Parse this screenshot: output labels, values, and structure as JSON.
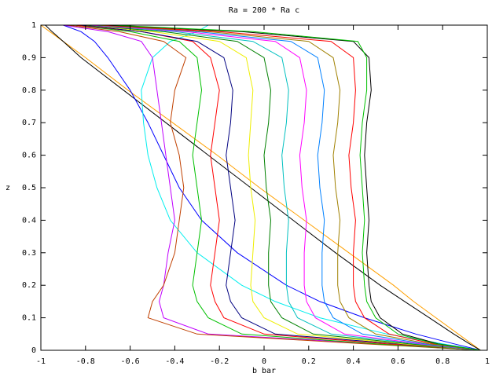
{
  "chart_data": {
    "type": "line",
    "title": "Ra = 200 * Ra c",
    "xlabel": "b bar",
    "ylabel": "z",
    "xlim": [
      -1,
      1
    ],
    "ylim": [
      0,
      1
    ],
    "xticks": [
      -1,
      -0.8,
      -0.6,
      -0.4,
      -0.2,
      0,
      0.2,
      0.4,
      0.6,
      0.8,
      1
    ],
    "yticks": [
      0,
      0.1,
      0.2,
      0.3,
      0.4,
      0.5,
      0.6,
      0.7,
      0.8,
      0.9,
      1
    ],
    "y": [
      0,
      0.02,
      0.05,
      0.1,
      0.15,
      0.2,
      0.3,
      0.4,
      0.5,
      0.6,
      0.7,
      0.8,
      0.9,
      0.95,
      0.98,
      1
    ],
    "series": [
      {
        "color": "#ffa000",
        "x": [
          0.97,
          0.93,
          0.87,
          0.77,
          0.67,
          0.58,
          0.38,
          0.18,
          -0.02,
          -0.21,
          -0.41,
          -0.61,
          -0.8,
          -0.9,
          -0.96,
          -1
        ]
      },
      {
        "color": "#000000",
        "x": [
          0.97,
          0.92,
          0.85,
          0.74,
          0.63,
          0.52,
          0.32,
          0.13,
          -0.06,
          -0.25,
          -0.44,
          -0.63,
          -0.82,
          -0.9,
          -0.95,
          -0.98
        ]
      },
      {
        "color": "#0000ff",
        "x": [
          0.97,
          0.85,
          0.68,
          0.45,
          0.25,
          0.1,
          -0.12,
          -0.28,
          -0.38,
          -0.45,
          -0.52,
          -0.6,
          -0.7,
          -0.76,
          -0.82,
          -0.9
        ]
      },
      {
        "color": "#00eeee",
        "x": [
          0.97,
          0.8,
          0.55,
          0.25,
          0.05,
          -0.1,
          -0.3,
          -0.42,
          -0.48,
          -0.52,
          -0.54,
          -0.55,
          -0.5,
          -0.42,
          -0.3,
          -0.25
        ]
      },
      {
        "color": "#c000ff",
        "x": [
          0.97,
          0.5,
          -0.25,
          -0.45,
          -0.47,
          -0.45,
          -0.43,
          -0.4,
          -0.42,
          -0.44,
          -0.46,
          -0.48,
          -0.5,
          -0.55,
          -0.7,
          -0.9
        ]
      },
      {
        "color": "#c04000",
        "x": [
          0.97,
          0.45,
          -0.3,
          -0.52,
          -0.5,
          -0.45,
          -0.4,
          -0.38,
          -0.36,
          -0.38,
          -0.42,
          -0.4,
          -0.35,
          -0.45,
          -0.65,
          -0.88
        ]
      },
      {
        "color": "#00c000",
        "x": [
          0.97,
          0.5,
          -0.1,
          -0.25,
          -0.3,
          -0.32,
          -0.3,
          -0.28,
          -0.3,
          -0.32,
          -0.3,
          -0.28,
          -0.3,
          -0.38,
          -0.6,
          -0.85
        ]
      },
      {
        "color": "#ff0000",
        "x": [
          0.97,
          0.55,
          0,
          -0.18,
          -0.22,
          -0.24,
          -0.22,
          -0.2,
          -0.22,
          -0.24,
          -0.22,
          -0.2,
          -0.24,
          -0.32,
          -0.55,
          -0.85
        ]
      },
      {
        "color": "#000080",
        "x": [
          0.97,
          0.6,
          0.05,
          -0.1,
          -0.15,
          -0.17,
          -0.15,
          -0.13,
          -0.15,
          -0.17,
          -0.15,
          -0.14,
          -0.18,
          -0.3,
          -0.55,
          -0.82
        ]
      },
      {
        "color": "#eeee00",
        "x": [
          0.97,
          0.62,
          0.15,
          0,
          -0.05,
          -0.06,
          -0.05,
          -0.04,
          -0.06,
          -0.07,
          -0.06,
          -0.05,
          -0.08,
          -0.2,
          -0.5,
          -0.8
        ]
      },
      {
        "color": "#008000",
        "x": [
          0.97,
          0.65,
          0.22,
          0.08,
          0.03,
          0.02,
          0.02,
          0.03,
          0.01,
          0,
          0.02,
          0.03,
          0,
          -0.12,
          -0.45,
          -0.8
        ]
      },
      {
        "color": "#00c0c0",
        "x": [
          0.97,
          0.68,
          0.3,
          0.15,
          0.11,
          0.1,
          0.1,
          0.11,
          0.09,
          0.08,
          0.1,
          0.11,
          0.08,
          -0.05,
          -0.4,
          -0.78
        ]
      },
      {
        "color": "#ff00ff",
        "x": [
          0.97,
          0.7,
          0.36,
          0.23,
          0.19,
          0.18,
          0.18,
          0.19,
          0.17,
          0.16,
          0.18,
          0.19,
          0.16,
          0.05,
          -0.35,
          -0.78
        ]
      },
      {
        "color": "#0080ff",
        "x": [
          0.97,
          0.72,
          0.44,
          0.31,
          0.27,
          0.26,
          0.26,
          0.27,
          0.25,
          0.24,
          0.26,
          0.27,
          0.24,
          0.12,
          -0.3,
          -0.75
        ]
      },
      {
        "color": "#a08000",
        "x": [
          0.97,
          0.74,
          0.5,
          0.38,
          0.34,
          0.33,
          0.33,
          0.34,
          0.32,
          0.31,
          0.33,
          0.34,
          0.31,
          0.2,
          -0.25,
          -0.75
        ]
      },
      {
        "color": "#ff0000",
        "x": [
          0.97,
          0.76,
          0.56,
          0.45,
          0.41,
          0.4,
          0.4,
          0.41,
          0.39,
          0.38,
          0.4,
          0.41,
          0.4,
          0.3,
          -0.2,
          -0.72
        ]
      },
      {
        "color": "#000000",
        "x": [
          0.97,
          0.78,
          0.62,
          0.52,
          0.48,
          0.47,
          0.46,
          0.47,
          0.46,
          0.45,
          0.46,
          0.48,
          0.47,
          0.4,
          -0.1,
          -0.7
        ]
      },
      {
        "color": "#00c000",
        "x": [
          0.97,
          0.77,
          0.6,
          0.5,
          0.46,
          0.45,
          0.44,
          0.45,
          0.44,
          0.43,
          0.44,
          0.46,
          0.46,
          0.42,
          -0.05,
          -0.68
        ]
      }
    ]
  }
}
